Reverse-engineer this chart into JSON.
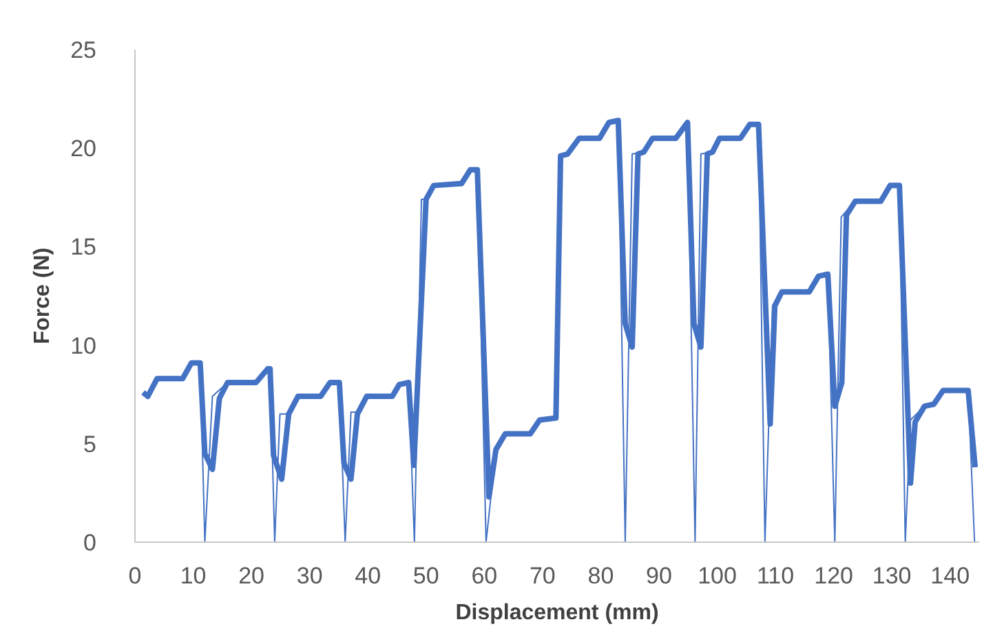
{
  "chart_data": {
    "type": "line",
    "xlabel": "Displacement (mm)",
    "ylabel": "Force (N)",
    "xlim": [
      0,
      145
    ],
    "xticks": [
      0,
      10,
      20,
      30,
      40,
      50,
      60,
      70,
      80,
      90,
      100,
      110,
      120,
      130,
      140
    ],
    "ylim": [
      0,
      25
    ],
    "yticks": [
      0,
      5,
      10,
      15,
      20,
      25
    ],
    "marker": "none",
    "line_style": "solid",
    "series": [
      {
        "color": "#4472c4",
        "x": [
          1.4,
          2.2,
          3.8,
          4.6,
          8.2,
          9.7,
          11.2,
          12.0,
          13.3,
          14.5,
          15.9,
          20.8,
          22.8,
          23.2,
          23.8,
          25.2,
          26.4,
          28.0,
          31.9,
          33.5,
          35.1,
          35.9,
          37.1,
          38.2,
          39.8,
          44.2,
          45.4,
          47.0,
          47.9,
          50.0,
          51.3,
          56.1,
          57.6,
          58.8,
          60.8,
          62.0,
          63.6,
          67.9,
          69.5,
          72.3,
          73.1,
          74.3,
          76.3,
          79.8,
          81.4,
          83.0,
          84.2,
          85.4,
          86.4,
          87.4,
          88.9,
          92.9,
          94.9,
          96.0,
          97.2,
          98.3,
          99.2,
          100.4,
          104.0,
          105.6,
          107.1,
          109.1,
          109.9,
          111.1,
          115.8,
          117.4,
          119.0,
          120.2,
          121.4,
          122.2,
          123.7,
          128.1,
          129.7,
          131.3,
          133.2,
          134.0,
          135.6,
          137.2,
          138.8,
          143.1,
          144.3
        ],
        "values": [
          7.6,
          7.4,
          8.3,
          8.3,
          8.3,
          9.1,
          9.1,
          4.5,
          3.7,
          7.3,
          8.1,
          8.1,
          8.8,
          8.8,
          4.4,
          3.2,
          6.5,
          7.4,
          7.4,
          8.1,
          8.1,
          4.0,
          3.2,
          6.5,
          7.4,
          7.4,
          8.0,
          8.1,
          3.9,
          17.4,
          18.1,
          18.2,
          18.9,
          18.9,
          2.3,
          4.7,
          5.5,
          5.5,
          6.2,
          6.3,
          19.6,
          19.7,
          20.5,
          20.5,
          21.3,
          21.4,
          11.1,
          9.9,
          19.7,
          19.8,
          20.5,
          20.5,
          21.3,
          11.1,
          9.9,
          19.7,
          19.8,
          20.5,
          20.5,
          21.2,
          21.2,
          6.0,
          12.0,
          12.7,
          12.7,
          13.5,
          13.6,
          6.9,
          8.1,
          16.6,
          17.3,
          17.3,
          18.1,
          18.1,
          3.0,
          6.1,
          6.9,
          7.0,
          7.7,
          7.7,
          3.8
        ]
      },
      {
        "color": "#4472c4",
        "x": [
          1.4,
          2.2,
          3.8,
          8.2,
          9.7,
          11.2,
          12.0,
          13.3,
          15.9,
          20.8,
          22.8,
          23.2,
          24.0,
          24.9,
          26.4,
          28.0,
          31.9,
          33.5,
          35.1,
          36.1,
          37.1,
          38.2,
          39.8,
          44.2,
          45.4,
          47.0,
          48.0,
          49.2,
          50.0,
          51.3,
          56.1,
          57.6,
          58.8,
          60.3,
          62.0,
          63.6,
          67.9,
          69.5,
          72.3,
          73.1,
          74.3,
          76.3,
          79.8,
          81.4,
          83.0,
          84.2,
          85.4,
          87.4,
          88.9,
          92.9,
          94.9,
          96.2,
          97.2,
          99.2,
          100.4,
          104.0,
          105.6,
          107.1,
          108.2,
          109.5,
          111.1,
          115.8,
          117.4,
          119.0,
          120.2,
          121.3,
          123.7,
          128.1,
          129.7,
          131.3,
          132.3,
          133.2,
          135.6,
          137.2,
          138.8,
          143.1,
          144.2
        ],
        "values": [
          7.6,
          7.4,
          8.3,
          8.3,
          9.1,
          9.1,
          0,
          7.4,
          8.1,
          8.1,
          8.8,
          8.8,
          0,
          6.5,
          6.5,
          7.4,
          7.4,
          8.1,
          8.1,
          0,
          6.6,
          6.6,
          7.4,
          7.4,
          8.0,
          8.1,
          0,
          17.4,
          17.4,
          18.1,
          18.2,
          18.9,
          18.9,
          0,
          4.7,
          5.5,
          5.5,
          6.2,
          6.3,
          19.6,
          19.7,
          20.5,
          20.5,
          21.3,
          21.4,
          0,
          19.7,
          19.8,
          20.5,
          20.5,
          21.3,
          0,
          19.7,
          19.8,
          20.5,
          20.5,
          21.2,
          21.2,
          0,
          12.0,
          12.7,
          12.7,
          13.5,
          13.6,
          0,
          16.5,
          17.3,
          17.3,
          18.1,
          18.1,
          0,
          6.2,
          6.9,
          7.0,
          7.7,
          7.7,
          0
        ]
      }
    ]
  }
}
